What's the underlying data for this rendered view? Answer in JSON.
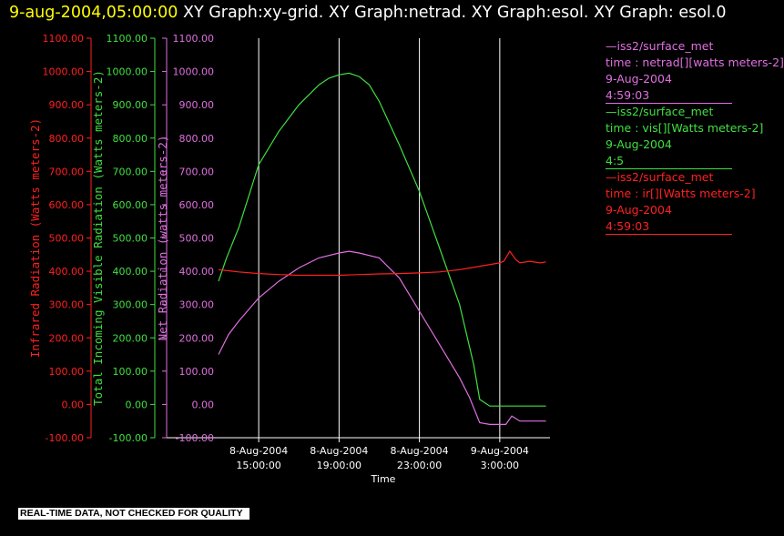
{
  "header": {
    "timestamp": "9-aug-2004,05:00:00",
    "title_rest": " XY Graph:xy-grid.  XY Graph:netrad.  XY Graph:esol.  XY Graph: esol.0"
  },
  "colors": {
    "ir": "#ff2020",
    "vis": "#40e040",
    "net": "#e070e0",
    "background": "#000000",
    "grid": "#ffffff"
  },
  "legend": [
    {
      "color": "#e070e0",
      "lines": [
        "—iss2/surface_met",
        "time : netrad[][watts meters-2]",
        "9-Aug-2004",
        "4:59:03"
      ]
    },
    {
      "color": "#40e040",
      "lines": [
        "—iss2/surface_met",
        "time : vis[][Watts meters-2]",
        "9-Aug-2004",
        "4:5"
      ]
    },
    {
      "color": "#ff2020",
      "lines": [
        "—iss2/surface_met",
        "time : ir[][Watts meters-2]",
        "9-Aug-2004",
        "4:59:03"
      ]
    }
  ],
  "footer": {
    "qc_label": "REAL-TIME DATA, NOT CHECKED FOR QUALITY"
  },
  "chart_data": {
    "type": "line",
    "xlabel": "Time",
    "x_unit": "hours since 8-Aug-2004 00:00",
    "xlim": [
      13.0,
      29.5
    ],
    "x_ticks": [
      {
        "x": 15,
        "label": [
          "8-Aug-2004",
          "15:00:00"
        ]
      },
      {
        "x": 19,
        "label": [
          "8-Aug-2004",
          "19:00:00"
        ]
      },
      {
        "x": 23,
        "label": [
          "8-Aug-2004",
          "23:00:00"
        ]
      },
      {
        "x": 27,
        "label": [
          "9-Aug-2004",
          "3:00:00"
        ]
      }
    ],
    "grid": true,
    "y_ticks": [
      "-100.00",
      "0.00",
      "100.00",
      "200.00",
      "300.00",
      "400.00",
      "500.00",
      "600.00",
      "700.00",
      "800.00",
      "900.00",
      "1000.00",
      "1100.00"
    ],
    "axes": [
      {
        "id": "ir",
        "label": "Infrared Radiation (Watts meters-2)",
        "ylim": [
          -100,
          1100
        ]
      },
      {
        "id": "vis",
        "label": "Total Incoming Visible Radiation (Watts meters-2)",
        "ylim": [
          -100,
          1100
        ]
      },
      {
        "id": "net",
        "label": "Net Radiation (watts meters-2)",
        "ylim": [
          -100,
          1100
        ]
      }
    ],
    "series": [
      {
        "axis": "vis",
        "x": [
          13.0,
          13.4,
          14.0,
          15.0,
          16.0,
          17.0,
          18.0,
          18.5,
          19.0,
          19.5,
          20.0,
          20.5,
          21.0,
          22.0,
          23.0,
          24.0,
          25.0,
          25.7,
          26.0,
          26.5,
          27.0,
          28.0,
          29.0,
          29.3
        ],
        "y": [
          370,
          440,
          530,
          720,
          820,
          900,
          960,
          980,
          990,
          995,
          985,
          960,
          910,
          780,
          640,
          470,
          300,
          120,
          15,
          -5,
          -5,
          -5,
          -5,
          -5
        ]
      },
      {
        "axis": "net",
        "x": [
          13.0,
          13.5,
          14.0,
          15.0,
          16.0,
          17.0,
          18.0,
          19.0,
          19.5,
          20.0,
          21.0,
          22.0,
          23.0,
          24.0,
          25.0,
          25.5,
          26.0,
          26.5,
          27.0,
          27.3,
          27.6,
          28.0,
          29.0,
          29.3
        ],
        "y": [
          150,
          210,
          250,
          320,
          370,
          410,
          440,
          455,
          460,
          455,
          440,
          380,
          280,
          180,
          80,
          20,
          -55,
          -60,
          -60,
          -60,
          -35,
          -50,
          -50,
          -50
        ]
      },
      {
        "axis": "ir",
        "x": [
          13.0,
          14.0,
          15.0,
          16.0,
          17.0,
          18.0,
          19.0,
          20.0,
          21.0,
          22.0,
          23.0,
          24.0,
          25.0,
          26.0,
          27.0,
          27.2,
          27.5,
          27.8,
          28.0,
          28.5,
          29.0,
          29.3
        ],
        "y": [
          405,
          398,
          393,
          390,
          388,
          388,
          388,
          390,
          392,
          393,
          395,
          398,
          405,
          415,
          425,
          430,
          460,
          435,
          425,
          430,
          425,
          428
        ]
      }
    ]
  }
}
